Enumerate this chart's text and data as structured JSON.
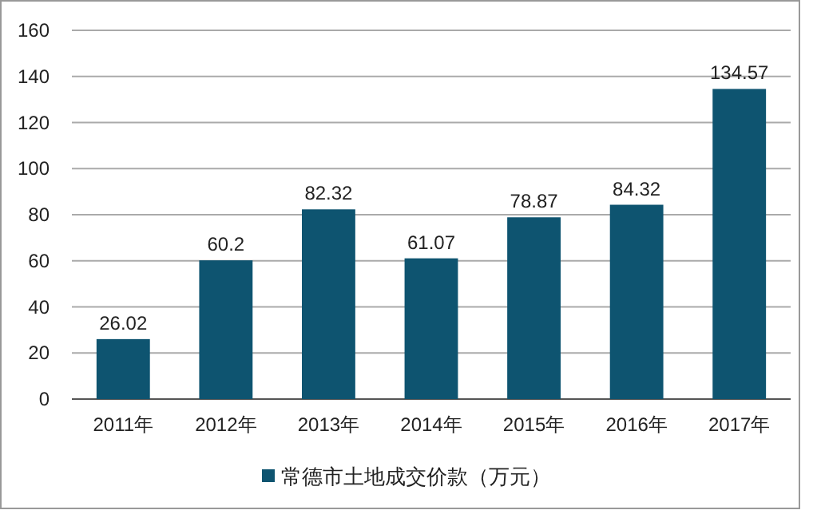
{
  "chart_data": {
    "type": "bar",
    "categories": [
      "2011年",
      "2012年",
      "2013年",
      "2014年",
      "2015年",
      "2016年",
      "2017年"
    ],
    "series": [
      {
        "name": "常德市土地成交价款（万元）",
        "color": "#0e5470",
        "values": [
          26.02,
          60.2,
          82.32,
          61.07,
          78.87,
          84.32,
          134.57
        ]
      }
    ],
    "ylim": [
      0,
      160
    ],
    "yticks": [
      0,
      20,
      40,
      60,
      80,
      100,
      120,
      140,
      160
    ],
    "grid": "y",
    "legend": "bottom",
    "data_labels": true
  }
}
